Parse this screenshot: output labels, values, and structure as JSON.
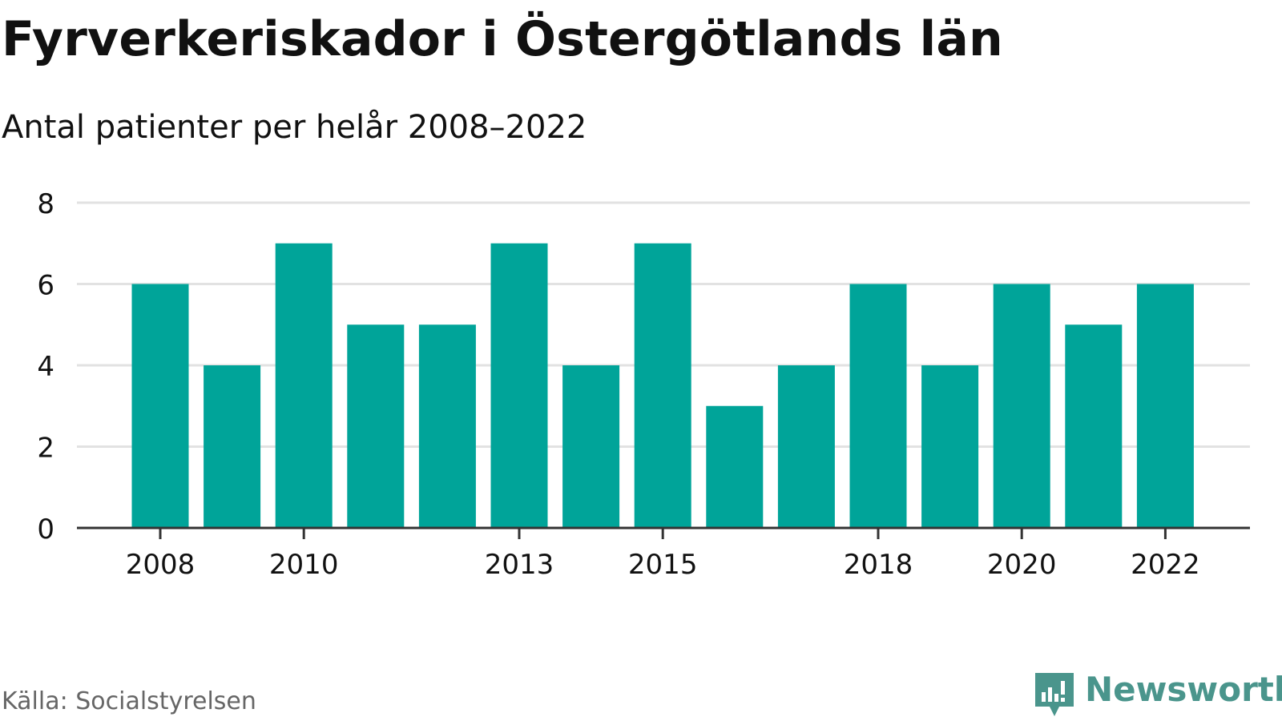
{
  "title": "Fyrverkeriskador i Östergötlands län",
  "subtitle": "Antal patienter per helår 2008–2022",
  "source": "Källa: Socialstyrelsen",
  "brand": {
    "name": "Newsworthy",
    "color": "#4a958c",
    "icon": "newsworthy-logo-icon"
  },
  "colors": {
    "bar": "#00a499",
    "grid": "#e2e2e2",
    "axis": "#333333",
    "text": "#111111",
    "source": "#666666"
  },
  "chart_data": {
    "type": "bar",
    "categories": [
      "2008",
      "2009",
      "2010",
      "2011",
      "2012",
      "2013",
      "2014",
      "2015",
      "2016",
      "2017",
      "2018",
      "2019",
      "2020",
      "2021",
      "2022"
    ],
    "values": [
      6,
      4,
      7,
      5,
      5,
      7,
      4,
      7,
      3,
      4,
      6,
      4,
      6,
      5,
      6
    ],
    "x_tick_labels": [
      "2008",
      "2010",
      "2013",
      "2015",
      "2018",
      "2020",
      "2022"
    ],
    "y_ticks": [
      0,
      2,
      4,
      6,
      8
    ],
    "ylim": [
      0,
      8
    ],
    "title": "Fyrverkeriskador i Östergötlands län",
    "subtitle": "Antal patienter per helår 2008–2022",
    "xlabel": "",
    "ylabel": "",
    "grid": true,
    "legend": "none"
  }
}
